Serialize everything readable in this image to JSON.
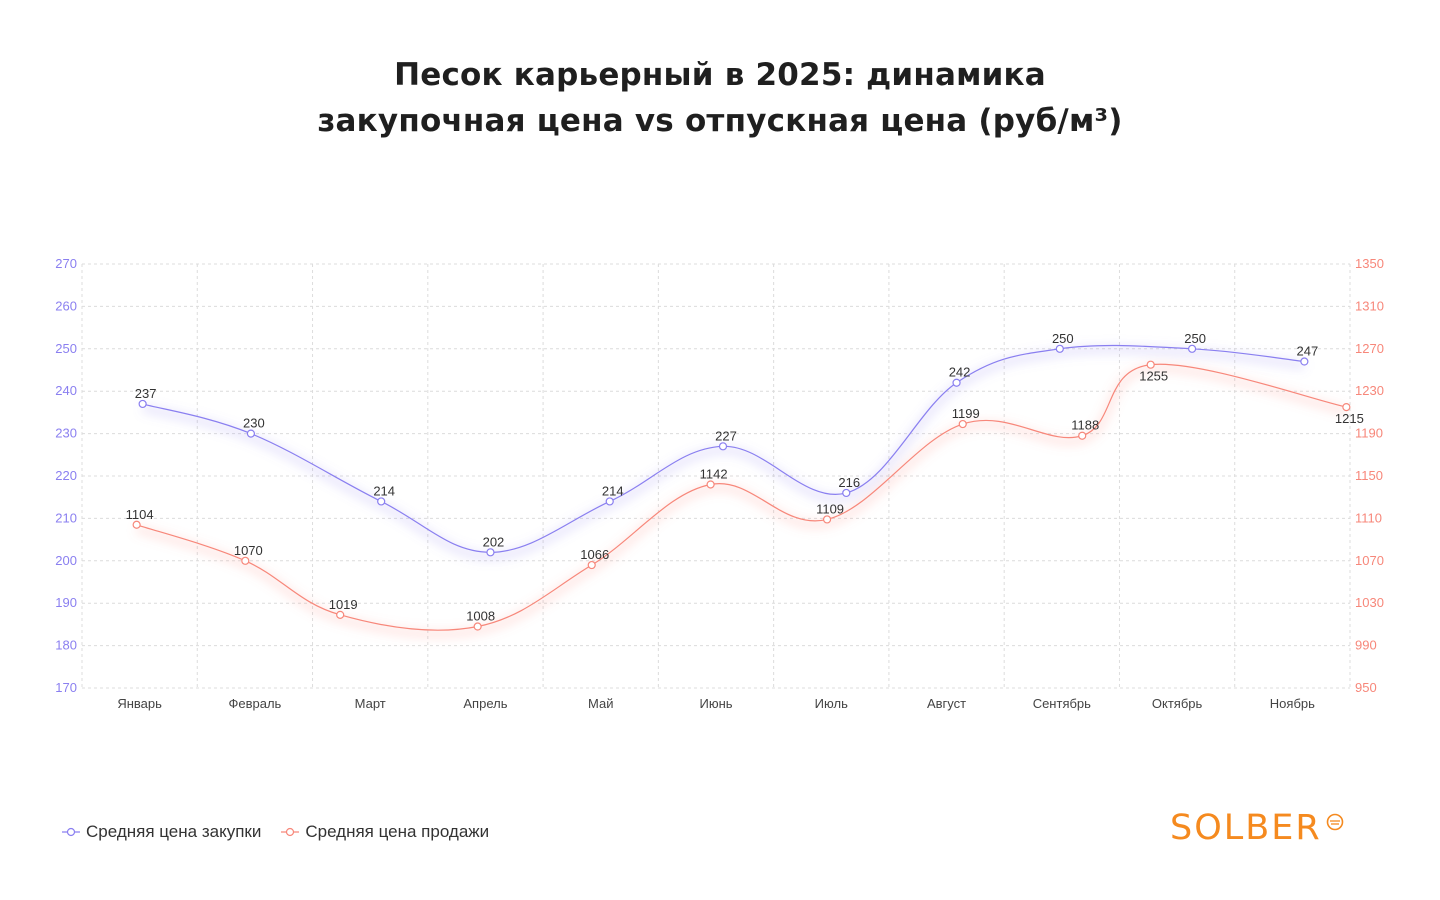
{
  "title": {
    "line1": "Песок карьерный в 2025: динамика",
    "line2": "закупочная цена vs отпускная цена (руб/м³)"
  },
  "logo": {
    "text": "SOLBER",
    "color": "#f58a1f",
    "icon": "sun-icon"
  },
  "chart_data": {
    "type": "line",
    "title": "Песок карьерный в 2025: динамика закупочная цена vs отпускная цена (руб/м³)",
    "categories": [
      "Январь",
      "Февраль",
      "Март",
      "Апрель",
      "Май",
      "Июнь",
      "Июль",
      "Август",
      "Сентябрь",
      "Октябрь",
      "Ноябрь"
    ],
    "y_left": {
      "min": 170,
      "max": 270,
      "ticks": [
        "170",
        "180",
        "190",
        "200",
        "210",
        "220",
        "230",
        "240",
        "250",
        "260",
        "270"
      ],
      "color": "#8a7ff0"
    },
    "y_right": {
      "min": 950,
      "max": 1350,
      "ticks": [
        "950",
        "990",
        "1030",
        "1070",
        "1110",
        "1150",
        "1190",
        "1230",
        "1270",
        "1310",
        "1350"
      ],
      "color": "#f7877a"
    },
    "grid": true,
    "legend_position": "bottom-left",
    "series": [
      {
        "name": "Средняя цена закупки",
        "axis": "left",
        "color": "#8a7ff0",
        "values": [
          237,
          230,
          214,
          202,
          214,
          227,
          216,
          242,
          250,
          250,
          247
        ],
        "labels": [
          "237",
          "230",
          "214",
          "202",
          "214",
          "227",
          "216",
          "242",
          "250",
          "250",
          "247"
        ]
      },
      {
        "name": "Средняя цена продажи",
        "axis": "right",
        "color": "#f7877a",
        "values": [
          1104,
          1070,
          1019,
          1008,
          1066,
          1142,
          1109,
          1199,
          1188,
          1255,
          1215
        ],
        "labels": [
          "1104",
          "1070",
          "1019",
          "1008",
          "1066",
          "1142",
          "1109",
          "1199",
          "1188",
          "1255",
          "1215"
        ]
      }
    ]
  }
}
